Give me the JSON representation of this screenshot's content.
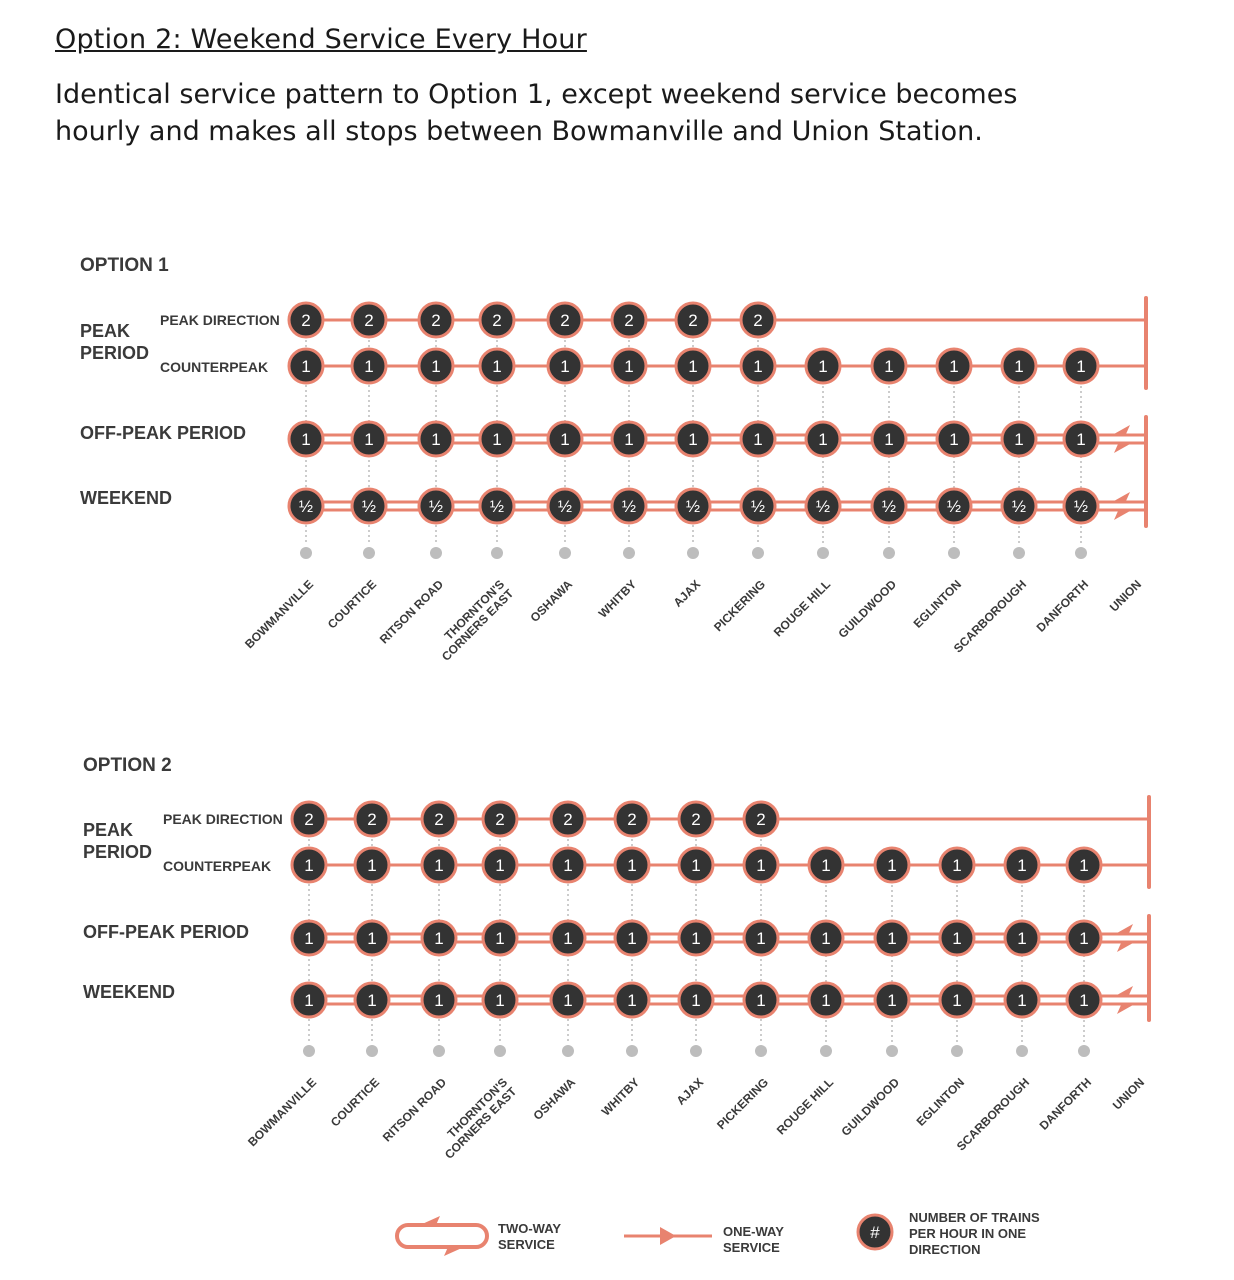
{
  "doc": {
    "title": "Option 2: Weekend Service Every Hour",
    "description": "Identical service pattern to Option 1, except weekend service becomes hourly and makes all stops between Bowmanville and Union Station."
  },
  "colors": {
    "line": "#E8836F",
    "node": "#333333",
    "dot": "#bdbdbd",
    "text": "#3a3a3a"
  },
  "stations": [
    "BOWMANVILLE",
    "COURTICE",
    "RITSON ROAD",
    "THORNTON'S CORNERS EAST",
    "OSHAWA",
    "WHITBY",
    "AJAX",
    "PICKERING",
    "ROUGE HILL",
    "GUILDWOOD",
    "EGLINTON",
    "SCARBOROUGH",
    "DANFORTH",
    "UNION"
  ],
  "row_labels": {
    "peak": "PEAK PERIOD",
    "peak_direction": "PEAK DIRECTION",
    "counterpeak": "COUNTERPEAK",
    "offpeak": "OFF-PEAK PERIOD",
    "weekend": "WEEKEND"
  },
  "options": [
    {
      "title": "OPTION 1",
      "rows": [
        {
          "id": "peak_direction",
          "service": "one-way",
          "trains": [
            "2",
            "2",
            "2",
            "2",
            "2",
            "2",
            "2",
            "2"
          ]
        },
        {
          "id": "counterpeak",
          "service": "one-way",
          "trains": [
            "1",
            "1",
            "1",
            "1",
            "1",
            "1",
            "1",
            "1",
            "1",
            "1",
            "1",
            "1",
            "1"
          ]
        },
        {
          "id": "offpeak",
          "service": "two-way",
          "trains": [
            "1",
            "1",
            "1",
            "1",
            "1",
            "1",
            "1",
            "1",
            "1",
            "1",
            "1",
            "1",
            "1"
          ]
        },
        {
          "id": "weekend",
          "service": "two-way",
          "trains": [
            "½",
            "½",
            "½",
            "½",
            "½",
            "½",
            "½",
            "½",
            "½",
            "½",
            "½",
            "½",
            "½"
          ]
        }
      ]
    },
    {
      "title": "OPTION 2",
      "rows": [
        {
          "id": "peak_direction",
          "service": "one-way",
          "trains": [
            "2",
            "2",
            "2",
            "2",
            "2",
            "2",
            "2",
            "2"
          ]
        },
        {
          "id": "counterpeak",
          "service": "one-way",
          "trains": [
            "1",
            "1",
            "1",
            "1",
            "1",
            "1",
            "1",
            "1",
            "1",
            "1",
            "1",
            "1",
            "1"
          ]
        },
        {
          "id": "offpeak",
          "service": "two-way",
          "trains": [
            "1",
            "1",
            "1",
            "1",
            "1",
            "1",
            "1",
            "1",
            "1",
            "1",
            "1",
            "1",
            "1"
          ]
        },
        {
          "id": "weekend",
          "service": "two-way",
          "trains": [
            "1",
            "1",
            "1",
            "1",
            "1",
            "1",
            "1",
            "1",
            "1",
            "1",
            "1",
            "1",
            "1"
          ]
        }
      ]
    }
  ],
  "legend": {
    "two_way": "TWO-WAY SERVICE",
    "one_way": "ONE-WAY SERVICE",
    "symbol": "#",
    "number": "NUMBER OF TRAINS PER HOUR IN ONE DIRECTION"
  }
}
